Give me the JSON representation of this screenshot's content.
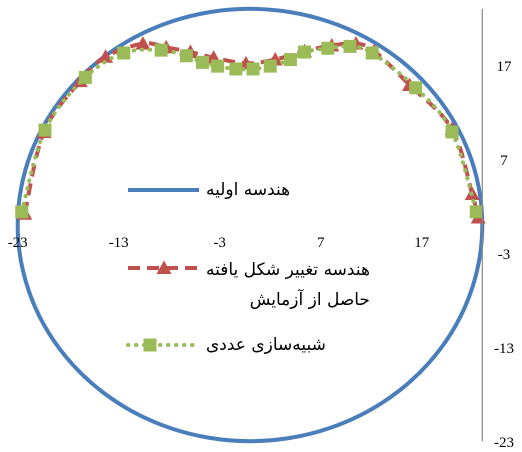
{
  "chart_data": {
    "type": "scatter",
    "xlim": [
      -23,
      23
    ],
    "ylim": [
      -23,
      23
    ],
    "x_ticks": [
      -23,
      -13,
      -3,
      7,
      17
    ],
    "y_ticks": [
      -23,
      -13,
      -3,
      7,
      17
    ],
    "y_axis_position": "right",
    "grid": false,
    "legend": "center",
    "series": [
      {
        "name": "هندسه اولیه",
        "color": "#4A7EBB",
        "line": "solid",
        "marker": "none",
        "x": [
          23.0,
          22.65,
          21.61,
          19.92,
          17.62,
          14.78,
          11.5,
          7.87,
          3.99,
          0.0,
          -3.99,
          -7.87,
          -11.5,
          -14.78,
          -17.62,
          -19.92,
          -21.61,
          -22.65,
          -23.0,
          -22.65,
          -21.61,
          -19.92,
          -17.62,
          -14.78,
          -11.5,
          -7.87,
          -3.99,
          0.0,
          3.99,
          7.87,
          11.5,
          14.78,
          17.62,
          19.92,
          21.61,
          22.65,
          23.0
        ],
        "y": [
          0.0,
          3.99,
          7.87,
          11.5,
          14.78,
          17.62,
          19.92,
          21.61,
          22.65,
          23.0,
          22.65,
          21.61,
          19.92,
          17.62,
          14.78,
          11.5,
          7.87,
          3.99,
          0.0,
          -3.99,
          -7.87,
          -11.5,
          -14.78,
          -17.62,
          -19.92,
          -21.61,
          -22.65,
          -23.0,
          -22.65,
          -21.61,
          -19.92,
          -17.62,
          -14.78,
          -11.5,
          -7.87,
          -3.99,
          0.0
        ]
      },
      {
        "name": "هندسه تغییر شکل یافته\nحاصل از آزمایش",
        "color": "#C0504D",
        "line": "dashed",
        "marker": "triangle",
        "x": [
          -22.3,
          -20.4,
          -16.8,
          -14.3,
          -10.6,
          -8.3,
          -5.9,
          -3.6,
          -0.4,
          2.5,
          5.4,
          8.1,
          10.5,
          12.3,
          15.8,
          20.0,
          22.0,
          22.6
        ],
        "y": [
          1.2,
          9.9,
          15.3,
          17.9,
          19.3,
          18.9,
          18.4,
          17.8,
          17.2,
          17.6,
          18.5,
          19.1,
          19.3,
          18.5,
          14.9,
          10.2,
          3.3,
          0.8
        ]
      },
      {
        "name": "شبیه‌سازی عددی",
        "color": "#9BBB59",
        "line": "dotted",
        "marker": "square",
        "x": [
          -22.6,
          -20.3,
          -16.3,
          -12.5,
          -8.8,
          -6.3,
          -4.7,
          -3.2,
          -1.4,
          0.3,
          2.0,
          4.0,
          5.4,
          7.7,
          9.9,
          12.1,
          16.4,
          20.0,
          22.4
        ],
        "y": [
          1.4,
          10.1,
          15.7,
          18.3,
          18.6,
          18.0,
          17.3,
          16.9,
          16.6,
          16.6,
          16.9,
          17.6,
          18.4,
          18.8,
          19.0,
          18.3,
          14.6,
          9.9,
          1.4
        ]
      }
    ]
  }
}
